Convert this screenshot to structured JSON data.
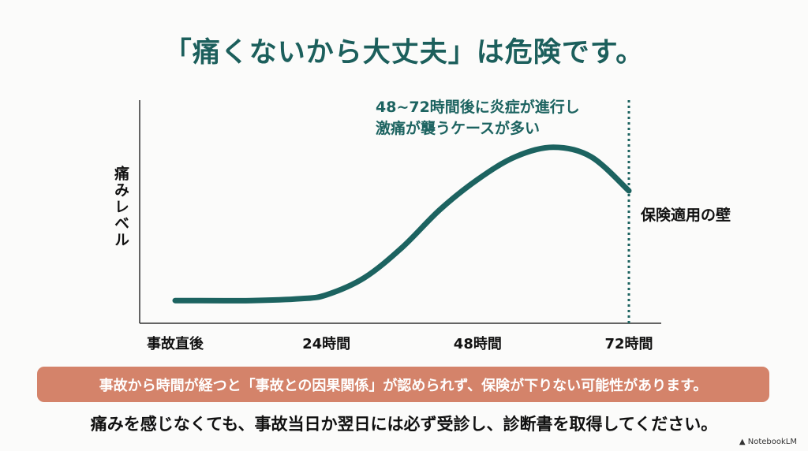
{
  "title": "「痛くないから大丈夫」は危険です。",
  "chart_data": {
    "type": "line",
    "title": "「痛くないから大丈夫」は危険です。",
    "xlabel": "",
    "ylabel": "痛みレベル",
    "x_unit": "hours",
    "xlim": [
      0,
      72
    ],
    "ylim": [
      0,
      100
    ],
    "xticks": [
      {
        "value": 0,
        "label": "事故直後"
      },
      {
        "value": 24,
        "label": "24時間"
      },
      {
        "value": 48,
        "label": "48時間"
      },
      {
        "value": 72,
        "label": "72時間"
      }
    ],
    "series": [
      {
        "name": "痛みレベル",
        "x": [
          0,
          12,
          20,
          24,
          30,
          36,
          42,
          48,
          54,
          60,
          66,
          72
        ],
        "y": [
          12,
          12,
          13,
          15,
          24,
          40,
          60,
          76,
          88,
          93,
          88,
          70
        ]
      }
    ],
    "vline": {
      "x": 72,
      "label": "保険適用の壁",
      "style": "dotted"
    },
    "annotation": [
      "48~72時間後に炎症が進行し",
      "激痛が襲うケースが多い"
    ],
    "grid": false,
    "color": "#1c6360"
  },
  "banner": "事故から時間が経つと「事故との因果関係」が認められず、保険が下りない可能性があります。",
  "bottom_text": "痛みを感じなくても、事故当日か翌日には必ず受診し、診断書を取得してください。",
  "watermark": "NotebookLM"
}
